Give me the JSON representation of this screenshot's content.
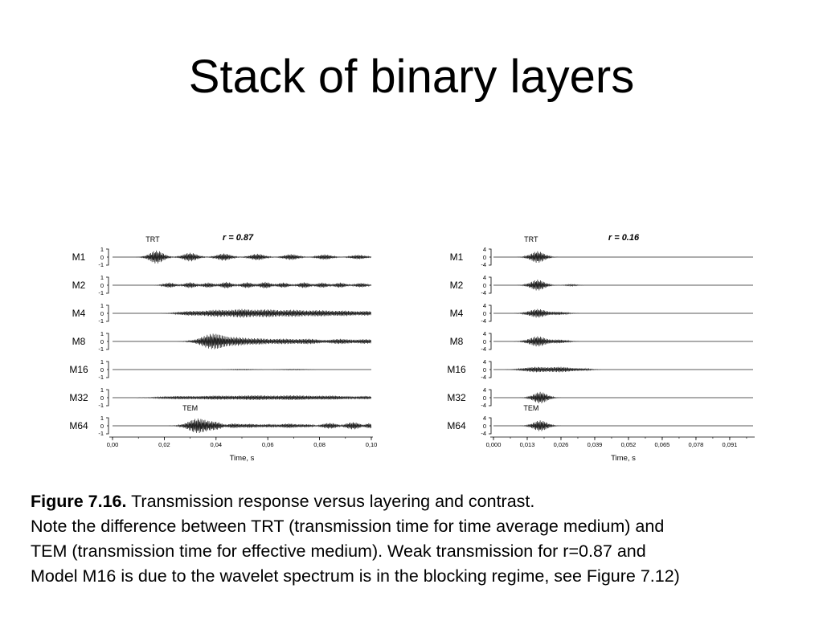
{
  "slide": {
    "title": "Stack of binary layers"
  },
  "caption": {
    "label": "Figure 7.16.",
    "line1": " Transmission response versus layering and contrast.",
    "line2": "Note the difference between TRT (transmission time for time average medium) and",
    "line3": "TEM (transmission time for effective medium). Weak transmission for r=0.87 and",
    "line4": "Model M16 is due to the wavelet spectrum is in the blocking regime, see Figure 7.12)"
  },
  "chart_data": [
    {
      "type": "line",
      "title": "r = 0.87",
      "xlabel": "Time, s",
      "xlim": [
        0.0,
        0.1
      ],
      "x_ticks": [
        "0,00",
        "0,02",
        "0,04",
        "0,06",
        "0,08",
        "0,10"
      ],
      "y_ticks": [
        "1",
        "0",
        "-1"
      ],
      "annotations": [
        {
          "text": "TRT",
          "x": 0.0155,
          "trace": "M1"
        },
        {
          "text": "TEM",
          "x": 0.03,
          "trace": "M64"
        }
      ],
      "series": [
        {
          "name": "M1",
          "events": [
            [
              0.017,
              0.9,
              0.0025
            ],
            [
              0.03,
              0.6,
              0.0025
            ],
            [
              0.043,
              0.5,
              0.0025
            ],
            [
              0.056,
              0.45,
              0.0025
            ],
            [
              0.069,
              0.4,
              0.0025
            ],
            [
              0.082,
              0.35,
              0.0025
            ],
            [
              0.095,
              0.3,
              0.0025
            ]
          ]
        },
        {
          "name": "M2",
          "events": [
            [
              0.022,
              0.35,
              0.002
            ],
            [
              0.03,
              0.4,
              0.002
            ],
            [
              0.037,
              0.35,
              0.002
            ],
            [
              0.044,
              0.45,
              0.002
            ],
            [
              0.052,
              0.4,
              0.002
            ],
            [
              0.059,
              0.45,
              0.002
            ],
            [
              0.066,
              0.35,
              0.002
            ],
            [
              0.074,
              0.4,
              0.002
            ],
            [
              0.081,
              0.35,
              0.002
            ],
            [
              0.088,
              0.35,
              0.002
            ],
            [
              0.096,
              0.3,
              0.002
            ]
          ]
        },
        {
          "name": "M4",
          "events": [
            [
              0.03,
              0.3,
              0.004
            ],
            [
              0.04,
              0.45,
              0.004
            ],
            [
              0.05,
              0.55,
              0.004
            ],
            [
              0.06,
              0.5,
              0.004
            ],
            [
              0.07,
              0.45,
              0.004
            ],
            [
              0.08,
              0.4,
              0.004
            ],
            [
              0.09,
              0.35,
              0.004
            ],
            [
              0.098,
              0.3,
              0.003
            ]
          ]
        },
        {
          "name": "M8",
          "events": [
            [
              0.037,
              0.5,
              0.004
            ],
            [
              0.04,
              0.9,
              0.004
            ],
            [
              0.048,
              0.55,
              0.004
            ],
            [
              0.056,
              0.4,
              0.004
            ],
            [
              0.066,
              0.35,
              0.004
            ],
            [
              0.076,
              0.35,
              0.004
            ],
            [
              0.088,
              0.35,
              0.004
            ],
            [
              0.098,
              0.3,
              0.003
            ]
          ]
        },
        {
          "name": "M16",
          "events": [
            [
              0.05,
              0.05,
              0.004
            ],
            [
              0.07,
              0.05,
              0.004
            ]
          ]
        },
        {
          "name": "M32",
          "events": [
            [
              0.025,
              0.2,
              0.006
            ],
            [
              0.04,
              0.25,
              0.006
            ],
            [
              0.055,
              0.3,
              0.006
            ],
            [
              0.07,
              0.3,
              0.006
            ],
            [
              0.085,
              0.25,
              0.006
            ],
            [
              0.098,
              0.2,
              0.004
            ]
          ]
        },
        {
          "name": "M64",
          "events": [
            [
              0.033,
              1.0,
              0.0035
            ],
            [
              0.04,
              0.55,
              0.003
            ],
            [
              0.046,
              0.35,
              0.003
            ],
            [
              0.053,
              0.25,
              0.003
            ],
            [
              0.06,
              0.2,
              0.003
            ],
            [
              0.068,
              0.3,
              0.003
            ],
            [
              0.075,
              0.2,
              0.003
            ],
            [
              0.084,
              0.4,
              0.003
            ],
            [
              0.093,
              0.5,
              0.003
            ],
            [
              0.099,
              0.4,
              0.002
            ]
          ]
        }
      ]
    },
    {
      "type": "line",
      "title": "r = 0.16",
      "xlabel": "Time, s",
      "xlim": [
        0.0,
        0.1
      ],
      "x_ticks": [
        "0,000",
        "0,013",
        "0,026",
        "0,039",
        "0,052",
        "0,065",
        "0,078",
        "0,091"
      ],
      "y_ticks": [
        "4",
        "0",
        "-4"
      ],
      "annotations": [
        {
          "text": "TRT",
          "x": 0.0145,
          "trace": "M1"
        },
        {
          "text": "TEM",
          "x": 0.0145,
          "trace": "M64"
        }
      ],
      "series": [
        {
          "name": "M1",
          "events": [
            [
              0.017,
              0.8,
              0.0025
            ]
          ]
        },
        {
          "name": "M2",
          "events": [
            [
              0.017,
              0.75,
              0.0025
            ],
            [
              0.03,
              0.1,
              0.002
            ]
          ]
        },
        {
          "name": "M4",
          "events": [
            [
              0.017,
              0.6,
              0.003
            ],
            [
              0.025,
              0.2,
              0.003
            ]
          ]
        },
        {
          "name": "M8",
          "events": [
            [
              0.017,
              0.7,
              0.003
            ],
            [
              0.025,
              0.25,
              0.003
            ]
          ]
        },
        {
          "name": "M16",
          "events": [
            [
              0.016,
              0.35,
              0.004
            ],
            [
              0.026,
              0.35,
              0.004
            ],
            [
              0.034,
              0.15,
              0.003
            ]
          ]
        },
        {
          "name": "M32",
          "events": [
            [
              0.018,
              0.8,
              0.0025
            ]
          ]
        },
        {
          "name": "M64",
          "events": [
            [
              0.018,
              0.75,
              0.0025
            ]
          ]
        }
      ]
    }
  ]
}
